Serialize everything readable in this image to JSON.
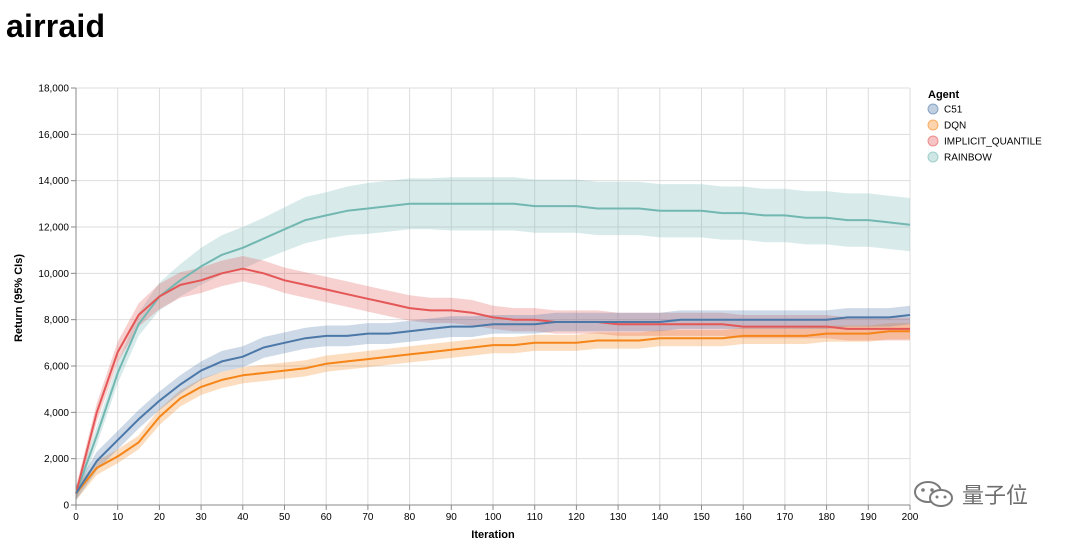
{
  "page": {
    "title": "airraid"
  },
  "watermark": {
    "text": "量子位"
  },
  "chart_data": {
    "type": "line",
    "title": "",
    "xlabel": "Iteration",
    "ylabel": "Return (95% CIs)",
    "xlim": [
      0,
      200
    ],
    "ylim": [
      0,
      18000
    ],
    "x_ticks": [
      "0",
      "10",
      "20",
      "30",
      "40",
      "50",
      "60",
      "70",
      "80",
      "90",
      "100",
      "110",
      "120",
      "130",
      "140",
      "150",
      "160",
      "170",
      "180",
      "190",
      "200"
    ],
    "y_ticks": [
      "0",
      "2,000",
      "4,000",
      "6,000",
      "8,000",
      "10,000",
      "12,000",
      "14,000",
      "16,000",
      "18,000"
    ],
    "grid": true,
    "legend": {
      "title": "Agent",
      "position": "right"
    },
    "x": [
      0,
      5,
      10,
      15,
      20,
      25,
      30,
      35,
      40,
      45,
      50,
      55,
      60,
      65,
      70,
      75,
      80,
      85,
      90,
      95,
      100,
      105,
      110,
      115,
      120,
      125,
      130,
      135,
      140,
      145,
      150,
      155,
      160,
      165,
      170,
      175,
      180,
      185,
      190,
      195,
      200
    ],
    "series": [
      {
        "name": "C51",
        "color": "#4c78a8",
        "values": [
          500,
          1900,
          2800,
          3700,
          4500,
          5200,
          5800,
          6200,
          6400,
          6800,
          7000,
          7200,
          7300,
          7300,
          7400,
          7400,
          7500,
          7600,
          7700,
          7700,
          7800,
          7800,
          7800,
          7900,
          7900,
          7900,
          7900,
          7900,
          7900,
          8000,
          8000,
          8000,
          8000,
          8000,
          8000,
          8000,
          8000,
          8100,
          8100,
          8100,
          8200
        ],
        "band": [
          300,
          400,
          400,
          400,
          400,
          400,
          400,
          450,
          450,
          450,
          450,
          450,
          450,
          450,
          450,
          450,
          450,
          450,
          450,
          450,
          400,
          400,
          400,
          400,
          400,
          400,
          400,
          400,
          400,
          400,
          400,
          400,
          400,
          400,
          400,
          400,
          400,
          400,
          400,
          400,
          400
        ]
      },
      {
        "name": "DQN",
        "color": "#f58518",
        "values": [
          500,
          1600,
          2100,
          2700,
          3800,
          4600,
          5100,
          5400,
          5600,
          5700,
          5800,
          5900,
          6100,
          6200,
          6300,
          6400,
          6500,
          6600,
          6700,
          6800,
          6900,
          6900,
          7000,
          7000,
          7000,
          7100,
          7100,
          7100,
          7200,
          7200,
          7200,
          7200,
          7300,
          7300,
          7300,
          7300,
          7400,
          7400,
          7400,
          7500,
          7500
        ],
        "band": [
          300,
          300,
          300,
          300,
          350,
          350,
          350,
          350,
          350,
          350,
          350,
          350,
          350,
          350,
          350,
          350,
          350,
          350,
          350,
          350,
          350,
          350,
          350,
          350,
          350,
          350,
          350,
          350,
          350,
          350,
          350,
          350,
          350,
          350,
          350,
          350,
          350,
          350,
          350,
          350,
          350
        ]
      },
      {
        "name": "IMPLICIT_QUANTILE",
        "color": "#e45756",
        "values": [
          500,
          4000,
          6600,
          8200,
          9000,
          9500,
          9700,
          10000,
          10200,
          10000,
          9700,
          9500,
          9300,
          9100,
          8900,
          8700,
          8500,
          8400,
          8400,
          8300,
          8100,
          8000,
          8000,
          7900,
          7900,
          7900,
          7800,
          7800,
          7800,
          7800,
          7800,
          7800,
          7700,
          7700,
          7700,
          7700,
          7700,
          7600,
          7600,
          7600,
          7600
        ],
        "band": [
          300,
          400,
          450,
          500,
          550,
          550,
          550,
          550,
          550,
          550,
          550,
          550,
          550,
          550,
          550,
          550,
          550,
          550,
          550,
          550,
          500,
          500,
          500,
          500,
          500,
          500,
          500,
          500,
          500,
          500,
          500,
          500,
          500,
          500,
          500,
          500,
          500,
          500,
          500,
          500,
          500
        ]
      },
      {
        "name": "RAINBOW",
        "color": "#72b7b2",
        "values": [
          500,
          3000,
          5700,
          7800,
          9000,
          9700,
          10300,
          10800,
          11100,
          11500,
          11900,
          12300,
          12500,
          12700,
          12800,
          12900,
          13000,
          13000,
          13000,
          13000,
          13000,
          13000,
          12900,
          12900,
          12900,
          12800,
          12800,
          12800,
          12700,
          12700,
          12700,
          12600,
          12600,
          12500,
          12500,
          12400,
          12400,
          12300,
          12300,
          12200,
          12100
        ],
        "band": [
          300,
          400,
          450,
          500,
          600,
          700,
          800,
          850,
          900,
          900,
          950,
          1000,
          1000,
          1050,
          1100,
          1100,
          1100,
          1100,
          1150,
          1150,
          1150,
          1150,
          1150,
          1150,
          1150,
          1150,
          1150,
          1150,
          1150,
          1150,
          1150,
          1150,
          1150,
          1150,
          1150,
          1150,
          1150,
          1150,
          1150,
          1150,
          1150
        ]
      }
    ]
  }
}
